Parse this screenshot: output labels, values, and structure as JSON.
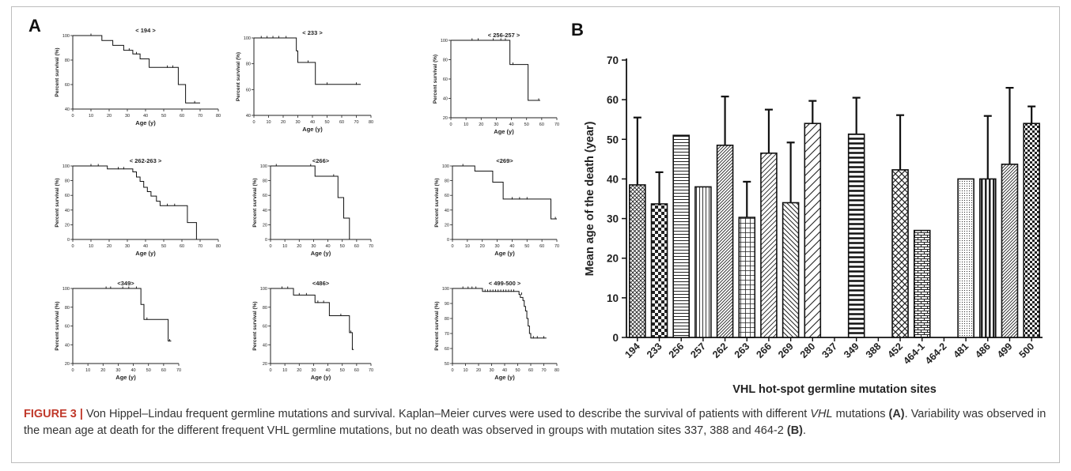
{
  "panel_a": {
    "label": "A"
  },
  "panel_b": {
    "label": "B"
  },
  "caption": {
    "label": "FIGURE 3 |",
    "text1": " Von Hippel–Lindau frequent germline mutations and survival. Kaplan–Meier curves were used to describe the survival of patients with different ",
    "gene": "VHL",
    "text2": " mutations ",
    "ref_a": "(A)",
    "text3": ". Variability was observed in the mean age at death for the different frequent VHL germline mutations, but no death was observed in groups with mutation sites 337, 388 and 464-2 ",
    "ref_b": "(B)",
    "text4": "."
  },
  "chart_data": [
    {
      "type": "line",
      "subtype": "kaplan-meier",
      "title": "< 194 >",
      "xlabel": "Age (y)",
      "ylabel": "Percent survival (%)",
      "xlim": [
        0,
        80
      ],
      "xticks": [
        0,
        10,
        20,
        30,
        40,
        50,
        60,
        70,
        80
      ],
      "ylim": [
        40,
        100
      ],
      "yticks": [
        40,
        60,
        80,
        100
      ],
      "steps": [
        [
          0,
          100
        ],
        [
          15,
          100
        ],
        [
          16,
          96
        ],
        [
          22,
          92
        ],
        [
          28,
          88
        ],
        [
          33,
          85
        ],
        [
          37,
          81
        ],
        [
          42,
          74
        ],
        [
          58,
          60
        ],
        [
          62,
          45
        ],
        [
          70,
          45
        ]
      ],
      "censored": [
        [
          10,
          100
        ],
        [
          31,
          88
        ],
        [
          35,
          85
        ],
        [
          52,
          74
        ],
        [
          55,
          74
        ],
        [
          67,
          45
        ]
      ]
    },
    {
      "type": "line",
      "subtype": "kaplan-meier",
      "title": "< 233 >",
      "xlabel": "Age (y)",
      "ylabel": "Percent survival (%)",
      "xlim": [
        0,
        80
      ],
      "xticks": [
        0,
        10,
        20,
        30,
        40,
        50,
        60,
        70,
        80
      ],
      "ylim": [
        40,
        100
      ],
      "yticks": [
        40,
        60,
        80,
        100
      ],
      "steps": [
        [
          0,
          100
        ],
        [
          27,
          100
        ],
        [
          29,
          90
        ],
        [
          30,
          81
        ],
        [
          42,
          64
        ],
        [
          73,
          64
        ]
      ],
      "censored": [
        [
          5,
          100
        ],
        [
          9,
          100
        ],
        [
          13,
          100
        ],
        [
          17,
          100
        ],
        [
          22,
          100
        ],
        [
          37,
          81
        ],
        [
          50,
          64
        ],
        [
          70,
          64
        ]
      ]
    },
    {
      "type": "line",
      "subtype": "kaplan-meier",
      "title": "< 256-257 >",
      "xlabel": "Age (y)",
      "ylabel": "Percent survival (%)",
      "xlim": [
        0,
        70
      ],
      "xticks": [
        0,
        10,
        20,
        30,
        40,
        50,
        60,
        70
      ],
      "ylim": [
        20,
        100
      ],
      "yticks": [
        20,
        40,
        60,
        80,
        100
      ],
      "steps": [
        [
          0,
          100
        ],
        [
          38,
          100
        ],
        [
          39,
          75
        ],
        [
          51,
          38
        ],
        [
          59,
          38
        ]
      ],
      "censored": [
        [
          14,
          100
        ],
        [
          18,
          100
        ],
        [
          28,
          100
        ],
        [
          33,
          100
        ],
        [
          36,
          100
        ],
        [
          41,
          75
        ],
        [
          58,
          38
        ]
      ]
    },
    {
      "type": "line",
      "subtype": "kaplan-meier",
      "title": "< 262-263 >",
      "xlabel": "Age (y)",
      "ylabel": "Percent survival (%)",
      "xlim": [
        0,
        80
      ],
      "xticks": [
        0,
        10,
        20,
        30,
        40,
        50,
        60,
        70,
        80
      ],
      "ylim": [
        0,
        100
      ],
      "yticks": [
        0,
        20,
        40,
        60,
        80,
        100
      ],
      "steps": [
        [
          0,
          100
        ],
        [
          18,
          100
        ],
        [
          19,
          96
        ],
        [
          32,
          96
        ],
        [
          33,
          92
        ],
        [
          35,
          85
        ],
        [
          37,
          79
        ],
        [
          39,
          71
        ],
        [
          41,
          65
        ],
        [
          43,
          59
        ],
        [
          46,
          52
        ],
        [
          48,
          46
        ],
        [
          60,
          46
        ],
        [
          63,
          23
        ],
        [
          68,
          0
        ]
      ],
      "censored": [
        [
          10,
          100
        ],
        [
          14,
          100
        ],
        [
          25,
          96
        ],
        [
          28,
          96
        ],
        [
          52,
          46
        ],
        [
          56,
          46
        ]
      ]
    },
    {
      "type": "line",
      "subtype": "kaplan-meier",
      "title": "<266>",
      "xlabel": "Age (y)",
      "ylabel": "Percent survival (%)",
      "xlim": [
        0,
        70
      ],
      "xticks": [
        0,
        10,
        20,
        30,
        40,
        50,
        60,
        70
      ],
      "ylim": [
        0,
        100
      ],
      "yticks": [
        0,
        20,
        40,
        60,
        80,
        100
      ],
      "steps": [
        [
          0,
          100
        ],
        [
          30,
          100
        ],
        [
          31,
          86
        ],
        [
          46,
          86
        ],
        [
          47,
          57
        ],
        [
          51,
          29
        ],
        [
          55,
          0
        ]
      ],
      "censored": [
        [
          4,
          100
        ],
        [
          28,
          100
        ],
        [
          44,
          86
        ]
      ]
    },
    {
      "type": "line",
      "subtype": "kaplan-meier",
      "title": "<269>",
      "xlabel": "Age (y)",
      "ylabel": "Percent survival (%)",
      "xlim": [
        0,
        70
      ],
      "xticks": [
        0,
        10,
        20,
        30,
        40,
        50,
        60,
        70
      ],
      "ylim": [
        0,
        100
      ],
      "yticks": [
        0,
        20,
        40,
        60,
        80,
        100
      ],
      "steps": [
        [
          0,
          100
        ],
        [
          14,
          100
        ],
        [
          15,
          93
        ],
        [
          26,
          93
        ],
        [
          27,
          78
        ],
        [
          33,
          78
        ],
        [
          34,
          55
        ],
        [
          65,
          55
        ],
        [
          66,
          28
        ],
        [
          70,
          28
        ]
      ],
      "censored": [
        [
          7,
          100
        ],
        [
          40,
          55
        ],
        [
          45,
          55
        ],
        [
          50,
          55
        ],
        [
          69,
          28
        ]
      ]
    },
    {
      "type": "line",
      "subtype": "kaplan-meier",
      "title": "<349>",
      "xlabel": "Age (y)",
      "ylabel": "Percent survival (%)",
      "xlim": [
        0,
        70
      ],
      "xticks": [
        0,
        10,
        20,
        30,
        40,
        50,
        60,
        70
      ],
      "ylim": [
        20,
        100
      ],
      "yticks": [
        20,
        40,
        60,
        80,
        100
      ],
      "steps": [
        [
          0,
          100
        ],
        [
          44,
          100
        ],
        [
          45,
          83
        ],
        [
          47,
          67
        ],
        [
          62,
          67
        ],
        [
          63,
          44
        ],
        [
          65,
          44
        ]
      ],
      "censored": [
        [
          22,
          100
        ],
        [
          25,
          100
        ],
        [
          33,
          100
        ],
        [
          37,
          100
        ],
        [
          42,
          100
        ],
        [
          49,
          67
        ],
        [
          64,
          44
        ]
      ]
    },
    {
      "type": "line",
      "subtype": "kaplan-meier",
      "title": "<486>",
      "xlabel": "Age (y)",
      "ylabel": "Percent survival (%)",
      "xlim": [
        0,
        70
      ],
      "xticks": [
        0,
        10,
        20,
        30,
        40,
        50,
        60,
        70
      ],
      "ylim": [
        20,
        100
      ],
      "yticks": [
        20,
        40,
        60,
        80,
        100
      ],
      "steps": [
        [
          0,
          100
        ],
        [
          15,
          100
        ],
        [
          16,
          93
        ],
        [
          30,
          93
        ],
        [
          31,
          85
        ],
        [
          40,
          85
        ],
        [
          41,
          71
        ],
        [
          54,
          71
        ],
        [
          55,
          53
        ],
        [
          57,
          35
        ],
        [
          58,
          35
        ]
      ],
      "censored": [
        [
          8,
          100
        ],
        [
          12,
          100
        ],
        [
          20,
          93
        ],
        [
          25,
          93
        ],
        [
          33,
          85
        ],
        [
          37,
          85
        ],
        [
          49,
          71
        ],
        [
          56,
          53
        ],
        [
          57,
          35
        ]
      ]
    },
    {
      "type": "line",
      "subtype": "kaplan-meier",
      "title": "< 499-500 >",
      "xlabel": "Age (y)",
      "ylabel": "Percent survival (%)",
      "xlim": [
        0,
        80
      ],
      "xticks": [
        0,
        10,
        20,
        30,
        40,
        50,
        60,
        70,
        80
      ],
      "ylim": [
        50,
        100
      ],
      "yticks": [
        50,
        60,
        70,
        80,
        90,
        100
      ],
      "steps": [
        [
          0,
          100
        ],
        [
          22,
          100
        ],
        [
          23,
          98
        ],
        [
          50,
          98
        ],
        [
          51,
          96
        ],
        [
          52,
          94
        ],
        [
          54,
          92
        ],
        [
          55,
          88
        ],
        [
          56,
          85
        ],
        [
          57,
          80
        ],
        [
          58,
          75
        ],
        [
          59,
          70
        ],
        [
          60,
          67
        ],
        [
          72,
          67
        ]
      ],
      "censored": [
        [
          8,
          100
        ],
        [
          12,
          100
        ],
        [
          15,
          100
        ],
        [
          18,
          100
        ],
        [
          25,
          98
        ],
        [
          27,
          98
        ],
        [
          29,
          98
        ],
        [
          31,
          98
        ],
        [
          33,
          98
        ],
        [
          35,
          98
        ],
        [
          37,
          98
        ],
        [
          39,
          98
        ],
        [
          41,
          98
        ],
        [
          43,
          98
        ],
        [
          45,
          98
        ],
        [
          47,
          98
        ],
        [
          53,
          96
        ],
        [
          62,
          67
        ],
        [
          65,
          67
        ],
        [
          70,
          67
        ]
      ]
    },
    {
      "type": "bar",
      "title": "",
      "xlabel": "VHL hot-spot germline mutation sites",
      "ylabel": "Mean age of the death (year)",
      "ylim": [
        0,
        70
      ],
      "yticks": [
        0,
        10,
        20,
        30,
        40,
        50,
        60,
        70
      ],
      "categories": [
        "194",
        "233",
        "256",
        "257",
        "262",
        "263",
        "266",
        "269",
        "280",
        "337",
        "349",
        "388",
        "452",
        "464-1",
        "464-2",
        "481",
        "486",
        "499",
        "500"
      ],
      "values": [
        38.5,
        33.7,
        51.0,
        38.0,
        48.5,
        30.3,
        46.5,
        34.0,
        54.0,
        0,
        51.3,
        0,
        42.3,
        27.0,
        0,
        40.0,
        40.0,
        43.7,
        54.0
      ],
      "errors": [
        17.0,
        8.0,
        0,
        0,
        12.3,
        9.0,
        11.0,
        15.2,
        5.7,
        0,
        9.2,
        0,
        13.8,
        0,
        0,
        0,
        15.9,
        19.3,
        4.3
      ]
    }
  ]
}
